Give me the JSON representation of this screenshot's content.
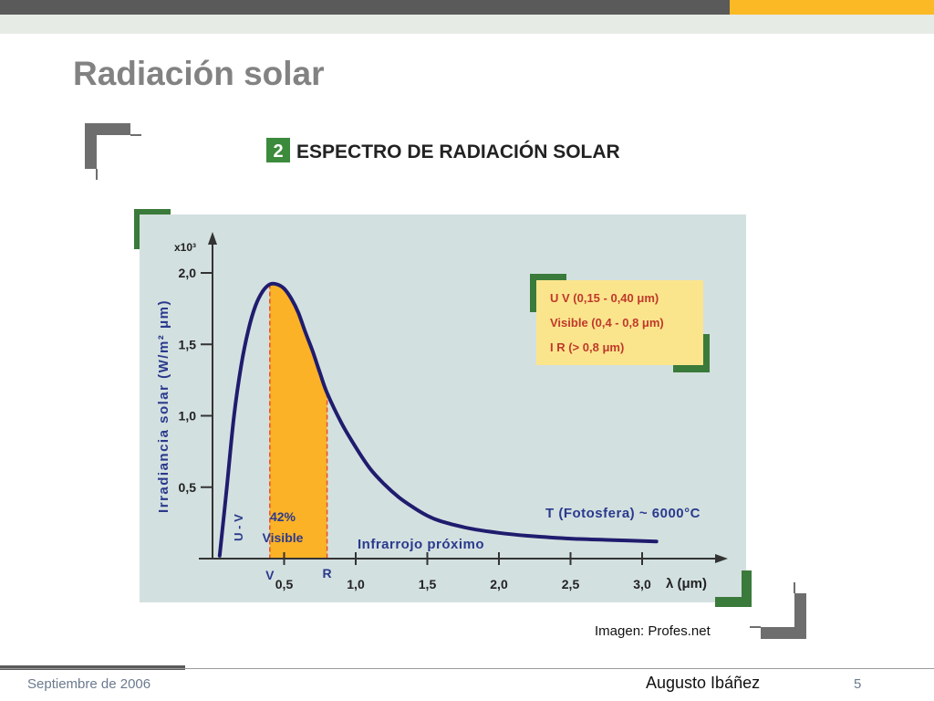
{
  "slide": {
    "title": "Radiación solar",
    "image_credit": "Imagen: Profes.net",
    "footer_date": "Septiembre de 2006",
    "footer_author": "Augusto Ibáñez",
    "page_number": "5"
  },
  "colors": {
    "accent_orange": "#fbb926",
    "accent_gray": "#5a5a5a",
    "chart_panel": "#d3e0e0",
    "curve": "#1f1c6e",
    "visible_fill": "#fbb226",
    "label_blue": "#2a3a8c",
    "legend_red": "#c0392b",
    "legend_box": "#fbe58c",
    "bracket_green": "#3a7a3a"
  },
  "chart_data": {
    "type": "line",
    "header_number": "2",
    "title": "ESPECTRO DE RADIACIÓN SOLAR",
    "xlabel": "λ (μm)",
    "ylabel": "Irradiancia solar (W/m² μm)",
    "y_multiplier": "x10³",
    "xlim": [
      0,
      3.5
    ],
    "ylim": [
      0,
      2.25
    ],
    "x_ticks": [
      {
        "value": 0.5,
        "label": "0,5"
      },
      {
        "value": 1.0,
        "label": "1,0"
      },
      {
        "value": 1.5,
        "label": "1,5"
      },
      {
        "value": 2.0,
        "label": "2,0"
      },
      {
        "value": 2.5,
        "label": "2,5"
      },
      {
        "value": 3.0,
        "label": "3,0"
      }
    ],
    "y_ticks": [
      {
        "value": 0.5,
        "label": "0,5"
      },
      {
        "value": 1.0,
        "label": "1,0"
      },
      {
        "value": 1.5,
        "label": "1,5"
      },
      {
        "value": 2.0,
        "label": "2,0"
      }
    ],
    "series": [
      {
        "x": [
          0.05,
          0.1,
          0.15,
          0.2,
          0.25,
          0.3,
          0.35,
          0.4,
          0.45,
          0.5,
          0.55,
          0.6,
          0.65,
          0.7,
          0.75,
          0.8,
          0.9,
          1.0,
          1.1,
          1.2,
          1.3,
          1.4,
          1.5,
          1.6,
          1.8,
          2.0,
          2.2,
          2.5,
          2.8,
          3.1
        ],
        "y": [
          0.02,
          0.5,
          1.0,
          1.35,
          1.6,
          1.77,
          1.87,
          1.92,
          1.92,
          1.89,
          1.82,
          1.72,
          1.58,
          1.45,
          1.3,
          1.16,
          0.95,
          0.78,
          0.63,
          0.52,
          0.43,
          0.36,
          0.3,
          0.26,
          0.21,
          0.18,
          0.16,
          0.14,
          0.13,
          0.12
        ]
      }
    ],
    "band_markers": [
      {
        "label": "V",
        "x": 0.4
      },
      {
        "label": "R",
        "x": 0.8
      }
    ],
    "annotations": {
      "uv_band": "U - V",
      "visible_percent": "42%",
      "visible_label": "Visible",
      "infrared_label": "Infrarrojo próximo",
      "temperature": "T (Fotosfera) ~ 6000°C"
    },
    "legend": [
      "U V (0,15 - 0,40 μm)",
      "Visible (0,4 - 0,8 μm)",
      "I R (> 0,8 μm)"
    ],
    "legend_position": "top-right",
    "grid": false
  }
}
